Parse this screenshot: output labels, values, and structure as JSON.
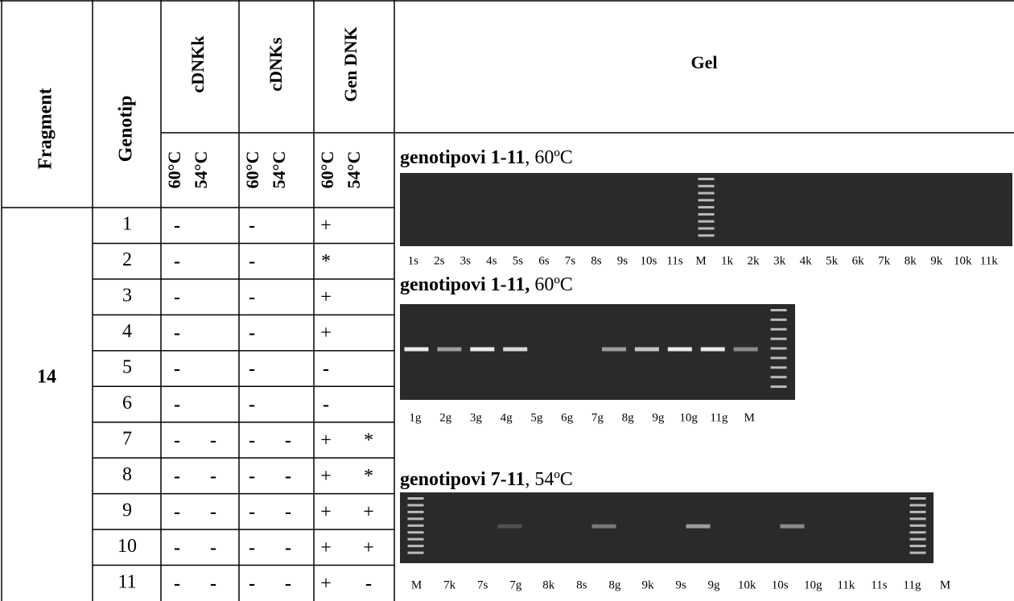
{
  "header": {
    "fragment": "Fragment",
    "genotip": "Genotip",
    "groups": [
      {
        "label": "cDNKk",
        "temps": [
          "60°C",
          "54°C"
        ]
      },
      {
        "label": "cDNKs",
        "temps": [
          "60°C",
          "54°C"
        ]
      },
      {
        "label": "Gen DNK",
        "temps": [
          "60°C",
          "54°C"
        ]
      }
    ],
    "gel": "Gel"
  },
  "table": {
    "fragment": "14",
    "rows": [
      {
        "genotip": "1",
        "cells": [
          "-",
          null,
          "-",
          null,
          "+",
          null
        ]
      },
      {
        "genotip": "2",
        "cells": [
          "-",
          null,
          "-",
          null,
          "*",
          null
        ]
      },
      {
        "genotip": "3",
        "cells": [
          "-",
          null,
          "-",
          null,
          "+",
          null
        ]
      },
      {
        "genotip": "4",
        "cells": [
          "-",
          null,
          "-",
          null,
          "+",
          null
        ]
      },
      {
        "genotip": "5",
        "cells": [
          "-",
          null,
          "-",
          null,
          "-",
          null
        ]
      },
      {
        "genotip": "6",
        "cells": [
          "-",
          null,
          "-",
          null,
          "-",
          null
        ]
      },
      {
        "genotip": "7",
        "cells": [
          "-",
          "-",
          "-",
          "-",
          "+",
          "*"
        ]
      },
      {
        "genotip": "8",
        "cells": [
          "-",
          "-",
          "-",
          "-",
          "+",
          "*"
        ]
      },
      {
        "genotip": "9",
        "cells": [
          "-",
          "-",
          "-",
          "-",
          "+",
          "+"
        ]
      },
      {
        "genotip": "10",
        "cells": [
          "-",
          "-",
          "-",
          "-",
          "+",
          "+"
        ]
      },
      {
        "genotip": "11",
        "cells": [
          "-",
          "-",
          "-",
          "-",
          "+",
          "-"
        ]
      }
    ]
  },
  "gels": [
    {
      "title_bold": "genotipovi 1-11",
      "title_rest": ", 60ºC",
      "lanes": [
        "1s",
        "2s",
        "3s",
        "4s",
        "5s",
        "6s",
        "7s",
        "8s",
        "9s",
        "10s",
        "11s",
        "M",
        "1k",
        "2k",
        "3k",
        "4k",
        "5k",
        "6k",
        "7k",
        "8k",
        "9k",
        "10k",
        "11k"
      ]
    },
    {
      "title_bold": "genotipovi 1-11,",
      "title_rest": " 60ºC",
      "lanes": [
        "1g",
        "2g",
        "3g",
        "4g",
        "5g",
        "6g",
        "7g",
        "8g",
        "9g",
        "10g",
        "11g",
        "M"
      ]
    },
    {
      "title_bold": "genotipovi 7-11",
      "title_rest": ", 54ºC",
      "lanes": [
        "M",
        "7k",
        "7s",
        "7g",
        "8k",
        "8s",
        "8g",
        "9k",
        "9s",
        "9g",
        "10k",
        "10s",
        "10g",
        "11k",
        "11s",
        "11g",
        "M"
      ]
    }
  ]
}
